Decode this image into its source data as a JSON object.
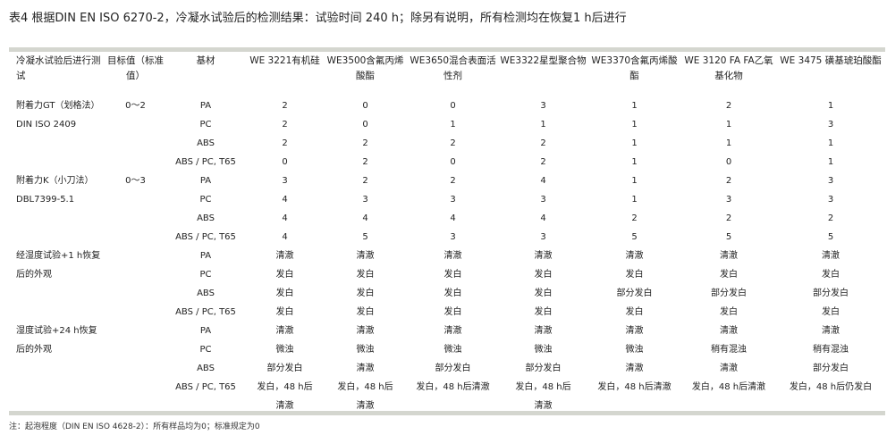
{
  "title": "表4 根据DIN EN ISO 6270-2，冷凝水试验后的检测结果：试验时间 240 h；除另有说明，所有检测均在恢复1 h后进行",
  "headers": [
    "冷凝水试验后进行测试",
    "目标值（标准值）",
    "基材",
    "WE 3221有机硅",
    "WE3500含氟丙烯酸酯",
    "WE3650混合表面活性剂",
    "WE3322星型聚合物",
    "WE3370含氟丙烯酸酯",
    "WE 3120 FA FA乙氧基化物",
    "WE 3475 磺基琥珀酸酯"
  ],
  "groups": [
    {
      "test": "附着力GT（划格法）DIN ISO 2409",
      "target": "0～2",
      "rows": [
        [
          "PA",
          "2",
          "0",
          "0",
          "3",
          "1",
          "2",
          "1"
        ],
        [
          "PC",
          "2",
          "0",
          "1",
          "1",
          "1",
          "1",
          "3"
        ],
        [
          "ABS",
          "2",
          "2",
          "2",
          "2",
          "1",
          "1",
          "1"
        ],
        [
          "ABS / PC, T65",
          "0",
          "2",
          "0",
          "2",
          "1",
          "0",
          "1"
        ]
      ]
    },
    {
      "test": "附着力K（小刀法）DBL7399-5.1",
      "target": "0～3",
      "rows": [
        [
          "PA",
          "3",
          "2",
          "2",
          "4",
          "1",
          "2",
          "3"
        ],
        [
          "PC",
          "4",
          "3",
          "3",
          "3",
          "1",
          "3",
          "3"
        ],
        [
          "ABS",
          "4",
          "4",
          "4",
          "4",
          "2",
          "2",
          "2"
        ],
        [
          "ABS / PC, T65",
          "4",
          "5",
          "3",
          "3",
          "5",
          "5",
          "5"
        ]
      ]
    },
    {
      "test": "经湿度试验+1 h恢复后的外观",
      "target": "",
      "rows": [
        [
          "PA",
          "清澈",
          "清澈",
          "清澈",
          "清澈",
          "清澈",
          "清澈",
          "清澈"
        ],
        [
          "PC",
          "发白",
          "发白",
          "发白",
          "发白",
          "发白",
          "发白",
          "发白"
        ],
        [
          "ABS",
          "发白",
          "发白",
          "发白",
          "发白",
          "部分发白",
          "部分发白",
          "部分发白"
        ],
        [
          "ABS / PC, T65",
          "发白",
          "发白",
          "发白",
          "发白",
          "发白",
          "发白",
          "发白"
        ]
      ]
    },
    {
      "test": "湿度试验+24 h恢复后的外观",
      "target": "",
      "rows": [
        [
          "PA",
          "清澈",
          "清澈",
          "清澈",
          "清澈",
          "清澈",
          "清澈",
          "清澈"
        ],
        [
          "PC",
          "微浊",
          "微浊",
          "微浊",
          "微浊",
          "微浊",
          "稍有混浊",
          "稍有混浊"
        ],
        [
          "ABS",
          "部分发白",
          "清澈",
          "部分发白",
          "部分发白",
          "清澈",
          "清澈",
          "部分发白"
        ],
        [
          "ABS / PC, T65",
          "发白，48 h后 清澈",
          "发白，48 h后 清澈",
          "发白，48 h后清澈",
          "发白，48 h后 清澈",
          "发白，48 h后清澈",
          "发白，48 h后清澈",
          "发白，48 h后仍发白"
        ]
      ]
    }
  ],
  "note": "注：起泡程度（DIN EN ISO 4628-2）：所有样品均为0；标准规定为0"
}
